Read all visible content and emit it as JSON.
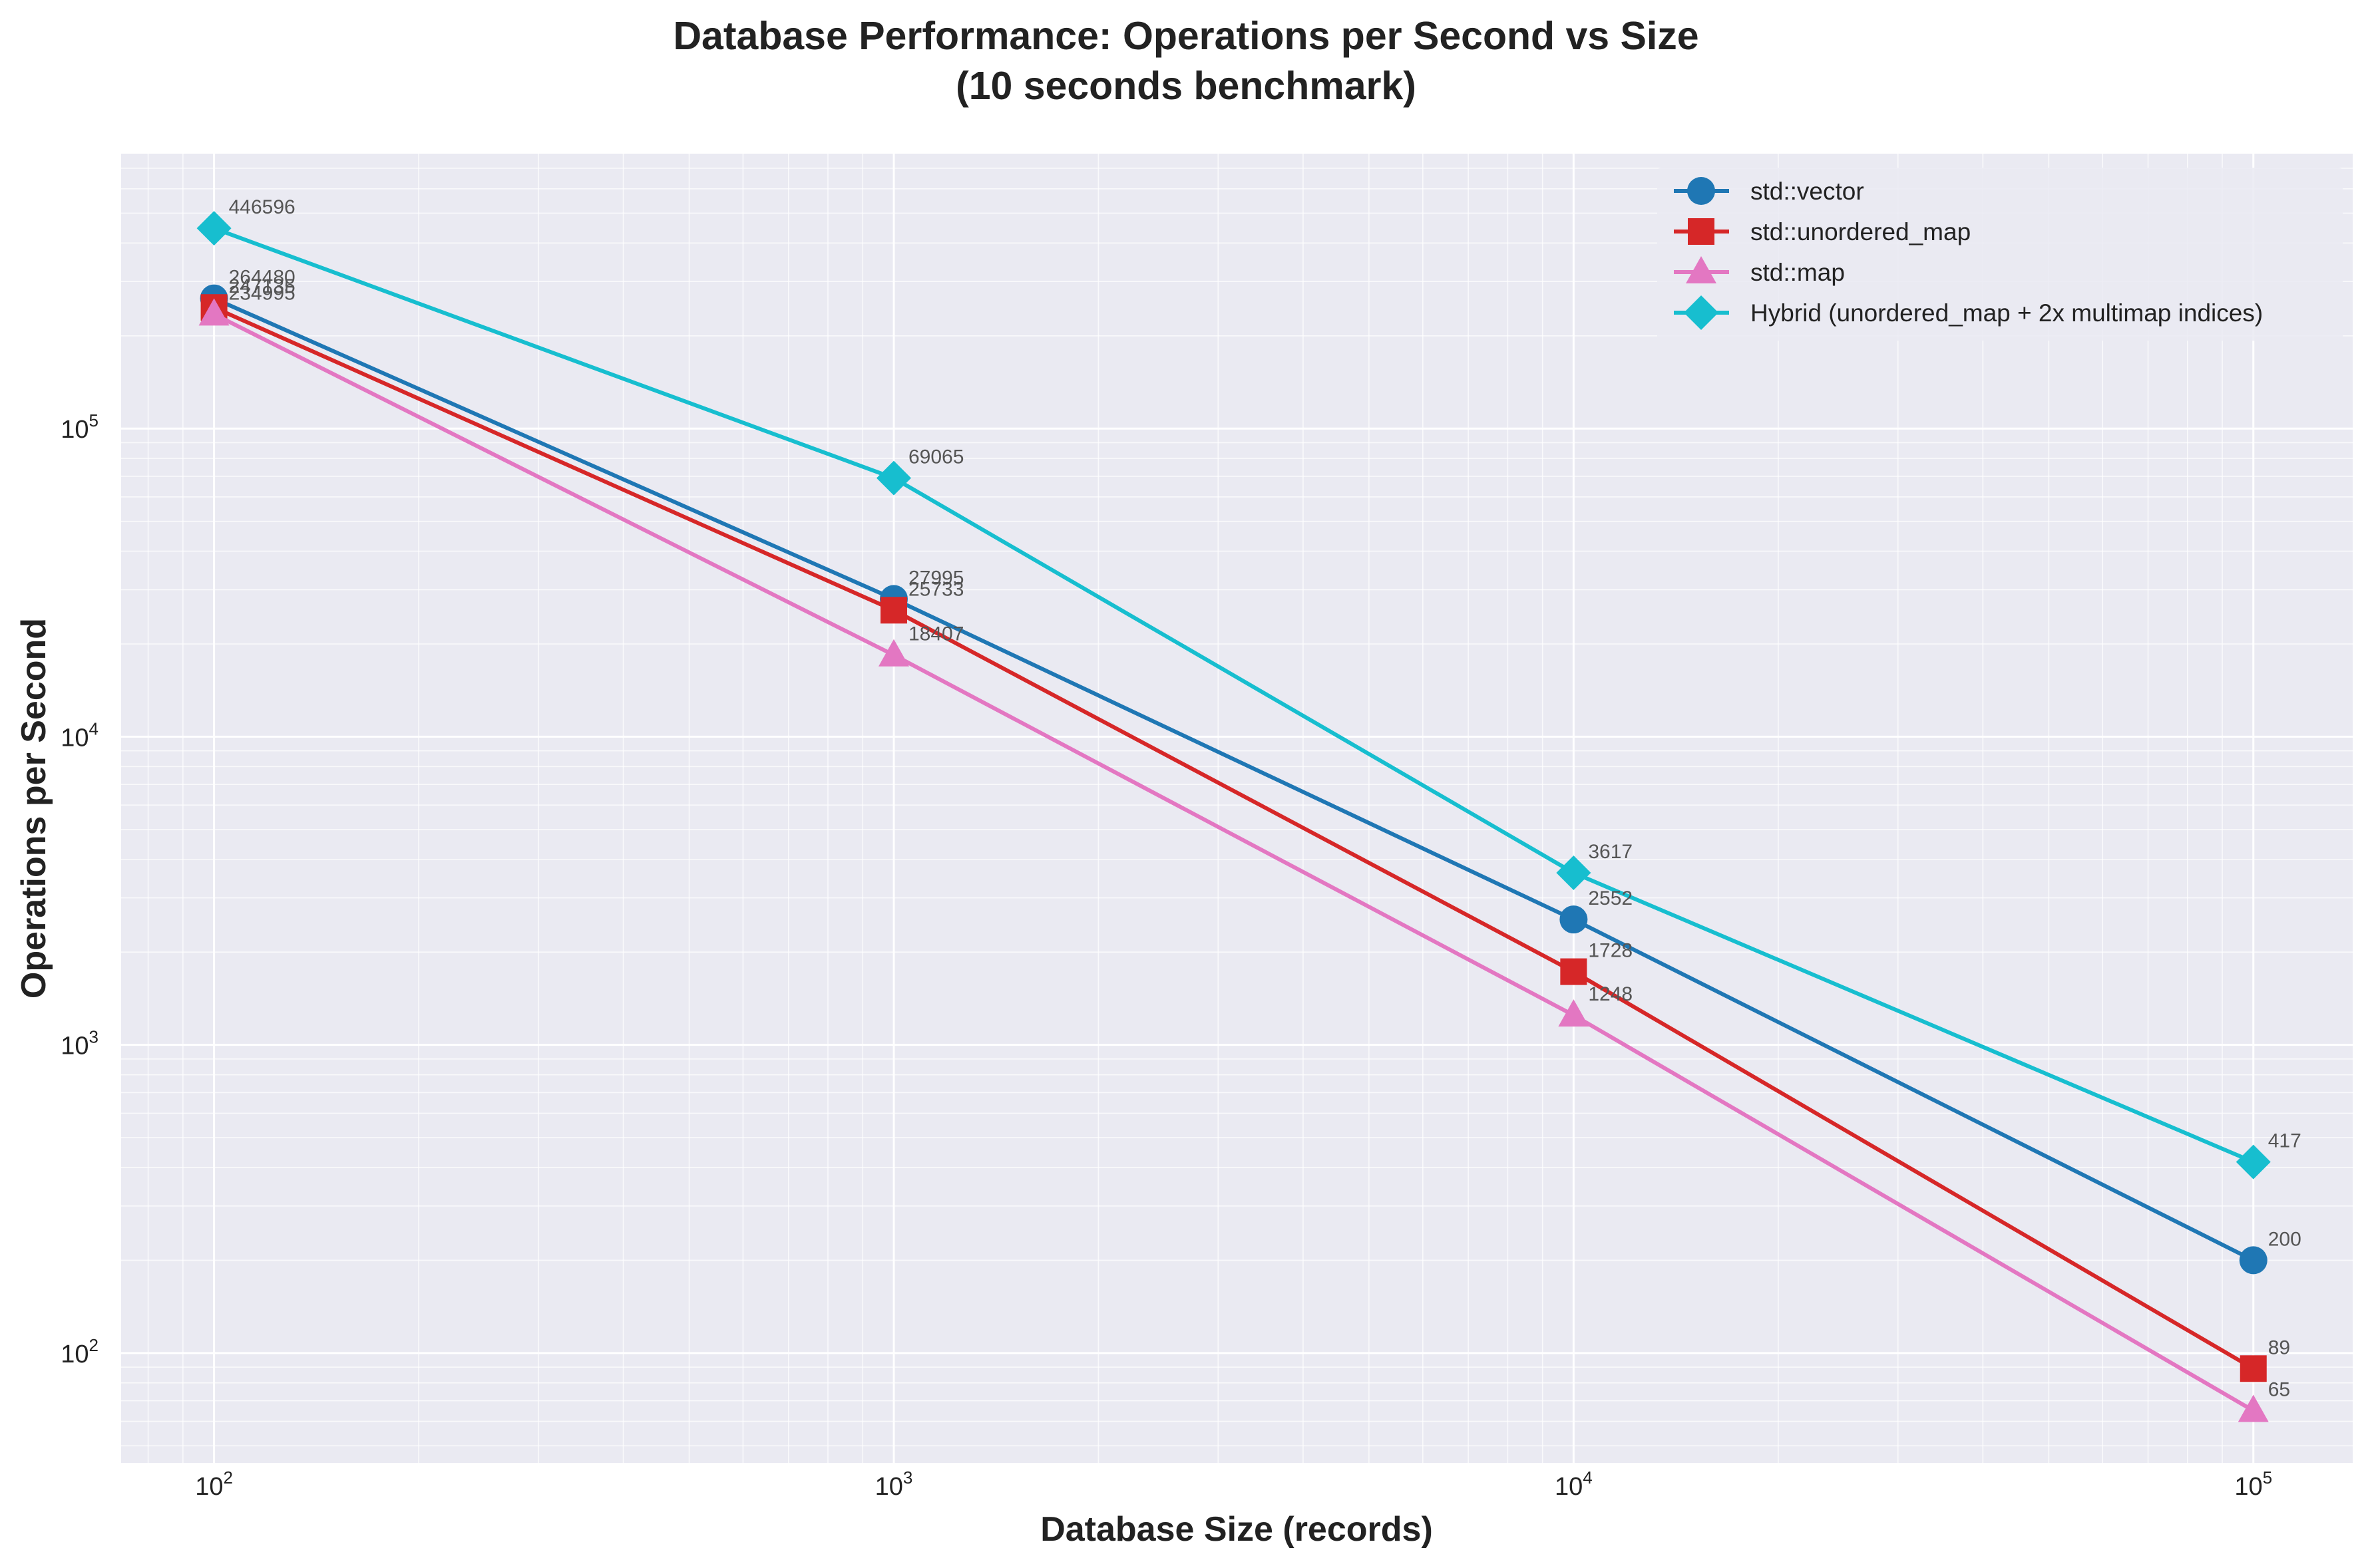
{
  "chart_data": {
    "type": "line",
    "title": "Database Performance: Operations per Second vs Size",
    "subtitle": "(10 seconds benchmark)",
    "xlabel": "Database Size (records)",
    "ylabel": "Operations per Second",
    "x_scale": "log",
    "y_scale": "log",
    "xlim": [
      73,
      140000
    ],
    "ylim": [
      44,
      780000
    ],
    "x": [
      100,
      1000,
      10000,
      100000
    ],
    "x_ticks": [
      {
        "value": 100,
        "base": "10",
        "exp": "2"
      },
      {
        "value": 1000,
        "base": "10",
        "exp": "3"
      },
      {
        "value": 10000,
        "base": "10",
        "exp": "4"
      },
      {
        "value": 100000,
        "base": "10",
        "exp": "5"
      }
    ],
    "y_ticks": [
      {
        "value": 100,
        "base": "10",
        "exp": "2"
      },
      {
        "value": 1000,
        "base": "10",
        "exp": "3"
      },
      {
        "value": 10000,
        "base": "10",
        "exp": "4"
      },
      {
        "value": 100000,
        "base": "10",
        "exp": "5"
      }
    ],
    "grid": true,
    "legend_position": "top-right",
    "series": [
      {
        "name": "std::vector",
        "color": "#1f77b4",
        "marker": "circle",
        "values": [
          264480,
          27995,
          2552,
          200
        ],
        "labels": [
          "264480",
          "27995",
          "2552",
          "200"
        ]
      },
      {
        "name": "std::unordered_map",
        "color": "#d62728",
        "marker": "square",
        "values": [
          247135,
          25733,
          1728,
          89
        ],
        "labels": [
          "247135",
          "25733",
          "1728",
          "89"
        ]
      },
      {
        "name": "std::map",
        "color": "#e377c2",
        "marker": "triangle",
        "values": [
          234995,
          18407,
          1248,
          65
        ],
        "labels": [
          "234995",
          "18407",
          "1248",
          "65"
        ]
      },
      {
        "name": "Hybrid (unordered_map + 2x multimap indices)",
        "color": "#17becf",
        "marker": "diamond",
        "values": [
          446596,
          69065,
          3617,
          417
        ],
        "labels": [
          "446596",
          "69065",
          "3617",
          "417"
        ]
      }
    ]
  }
}
